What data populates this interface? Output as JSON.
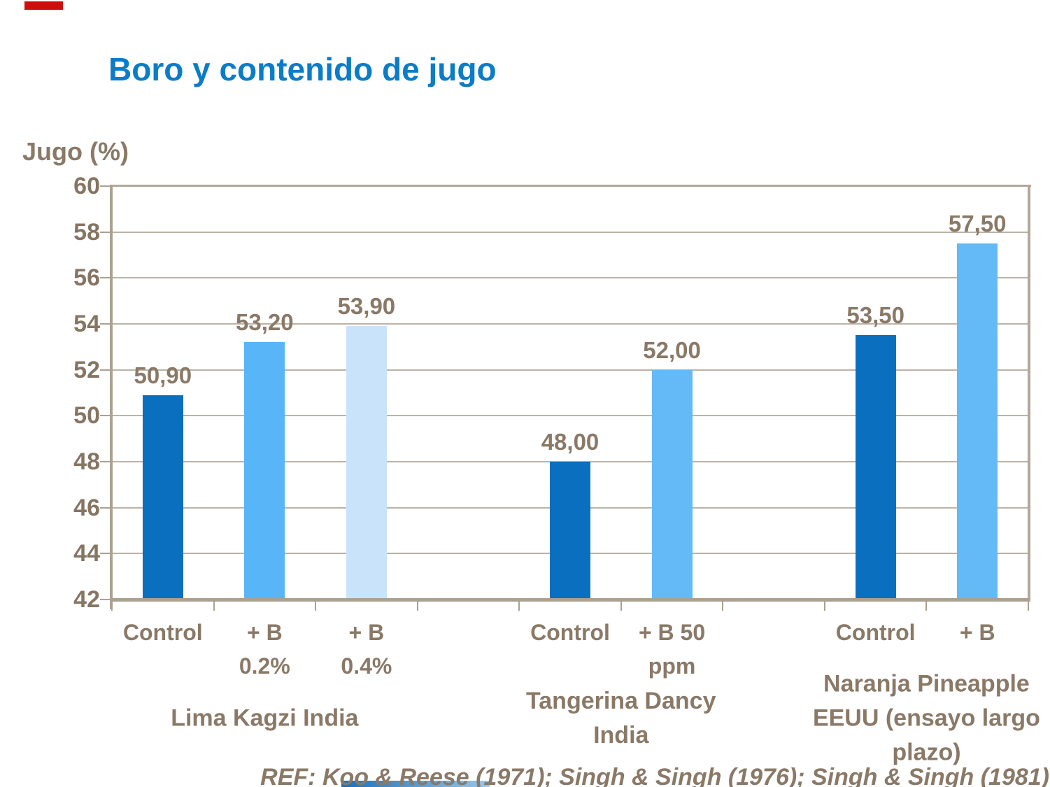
{
  "slide": {
    "title": "Boro y contenido de jugo",
    "y_axis_label": "Jugo (%)",
    "reference": "REF: Koo & Reese (1971); Singh & Singh (1976); Singh & Singh (1981)"
  },
  "colors": {
    "title_blue": "#0b7cc7",
    "text_brown": "#8a7967",
    "bar_dark_blue": "#0a6fbf",
    "bar_mid_blue": "#58b5f8",
    "bar_pale_blue": "#c9e3fb",
    "grid_tan": "#bcb3a6",
    "axis_tan": "#aba190",
    "deco_red": "#ce0d0d",
    "deco_blue": "#1f6fb5"
  },
  "chart_data": {
    "type": "bar",
    "title": "Boro y contenido de jugo",
    "ylabel": "Jugo (%)",
    "xlabel": "",
    "ylim": [
      42,
      60
    ],
    "yticks": [
      42,
      44,
      46,
      48,
      50,
      52,
      54,
      56,
      58,
      60
    ],
    "grid": true,
    "legend": "none",
    "total_slots": 9,
    "groups": [
      {
        "name": "Lima Kagzi India",
        "slots": [
          0,
          2
        ],
        "bars": [
          {
            "label": "Control",
            "value": 50.9,
            "display": "50,90",
            "slot": 0,
            "color": "#0a6fbf"
          },
          {
            "label": "+ B\n0.2%",
            "value": 53.2,
            "display": "53,20",
            "slot": 1,
            "color": "#58b5f8"
          },
          {
            "label": "+ B\n0.4%",
            "value": 53.9,
            "display": "53,90",
            "slot": 2,
            "color": "#c9e3fb"
          }
        ]
      },
      {
        "name": "Tangerina Dancy\nIndia",
        "slots": [
          4,
          5
        ],
        "bars": [
          {
            "label": "Control",
            "value": 48.0,
            "display": "48,00",
            "slot": 4,
            "color": "#0a6fbf"
          },
          {
            "label": "+ B 50\nppm",
            "value": 52.0,
            "display": "52,00",
            "slot": 5,
            "color": "#63baf6"
          }
        ]
      },
      {
        "name": "Naranja Pineapple\nEEUU (ensayo largo\nplazo)",
        "slots": [
          7,
          8
        ],
        "bars": [
          {
            "label": "Control",
            "value": 53.5,
            "display": "53,50",
            "slot": 7,
            "color": "#0a6fbf"
          },
          {
            "label": "+ B",
            "value": 57.5,
            "display": "57,50",
            "slot": 8,
            "color": "#63baf6"
          }
        ]
      }
    ]
  }
}
